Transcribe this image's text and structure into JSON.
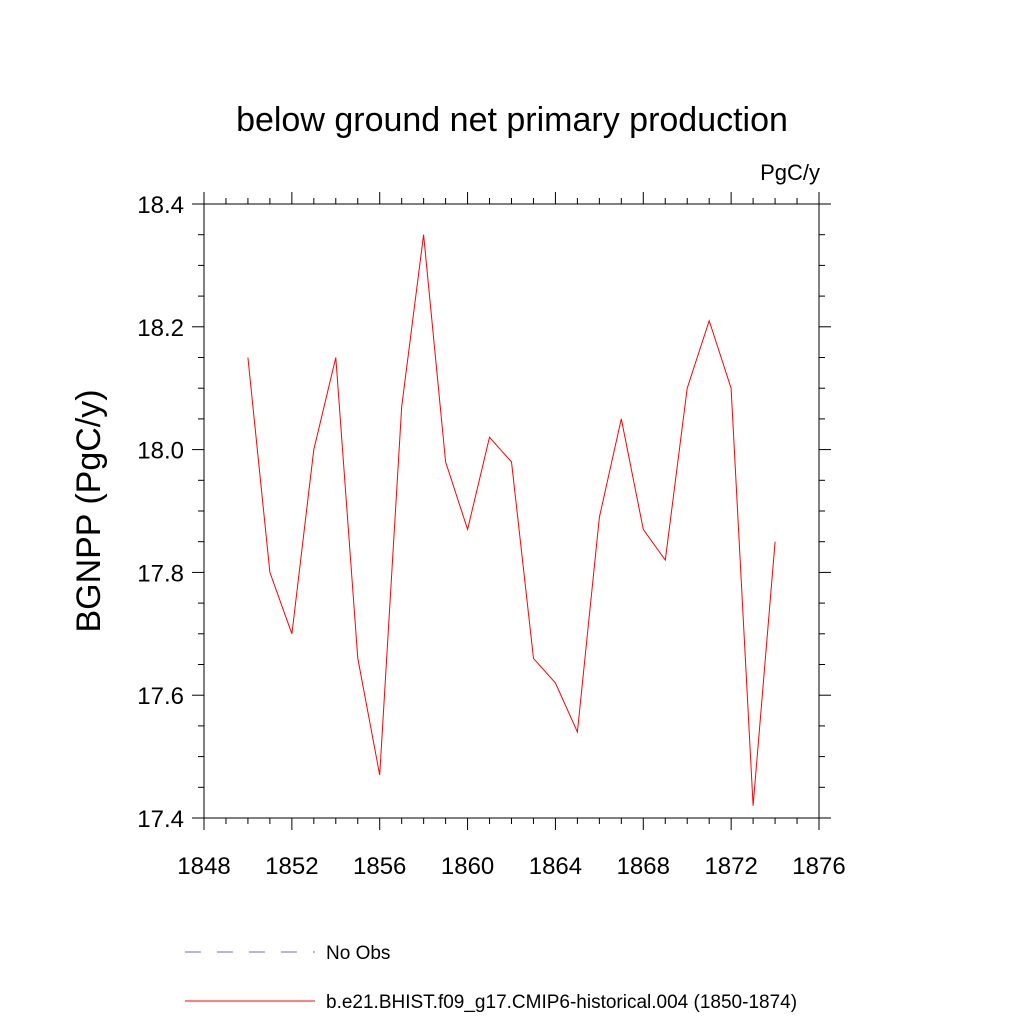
{
  "chart_data": {
    "type": "line",
    "title": "below ground net primary production",
    "units": "PgC/y",
    "ylabel": "BGNPP  (PgC/y)",
    "xlabel": "",
    "xlim": [
      1848,
      1876
    ],
    "ylim": [
      17.4,
      18.4
    ],
    "xticks": [
      1848,
      1852,
      1856,
      1860,
      1864,
      1868,
      1872,
      1876
    ],
    "yticks": [
      "17.4",
      "17.6",
      "17.8",
      "18.0",
      "18.2",
      "18.4"
    ],
    "grid": false,
    "legend_position": "bottom",
    "series": [
      {
        "name": "b.e21.BHIST.f09_g17.CMIP6-historical.004 (1850-1874)",
        "color": "#ff0000",
        "style": "solid",
        "x": [
          1850,
          1851,
          1852,
          1853,
          1854,
          1855,
          1856,
          1857,
          1858,
          1859,
          1860,
          1861,
          1862,
          1863,
          1864,
          1865,
          1866,
          1867,
          1868,
          1869,
          1870,
          1871,
          1872,
          1873,
          1874
        ],
        "y": [
          18.15,
          17.8,
          17.7,
          18.0,
          18.15,
          17.66,
          17.47,
          18.07,
          18.35,
          17.98,
          17.87,
          18.02,
          17.98,
          17.66,
          17.62,
          17.54,
          17.89,
          18.05,
          17.87,
          17.82,
          18.1,
          18.21,
          18.1,
          17.42,
          17.85
        ]
      }
    ],
    "legend": [
      {
        "label": "No Obs",
        "color": "#6a6acd",
        "style": "dashed"
      },
      {
        "label": "b.e21.BHIST.f09_g17.CMIP6-historical.004 (1850-1874)",
        "color": "#ff0000",
        "style": "solid"
      }
    ]
  }
}
